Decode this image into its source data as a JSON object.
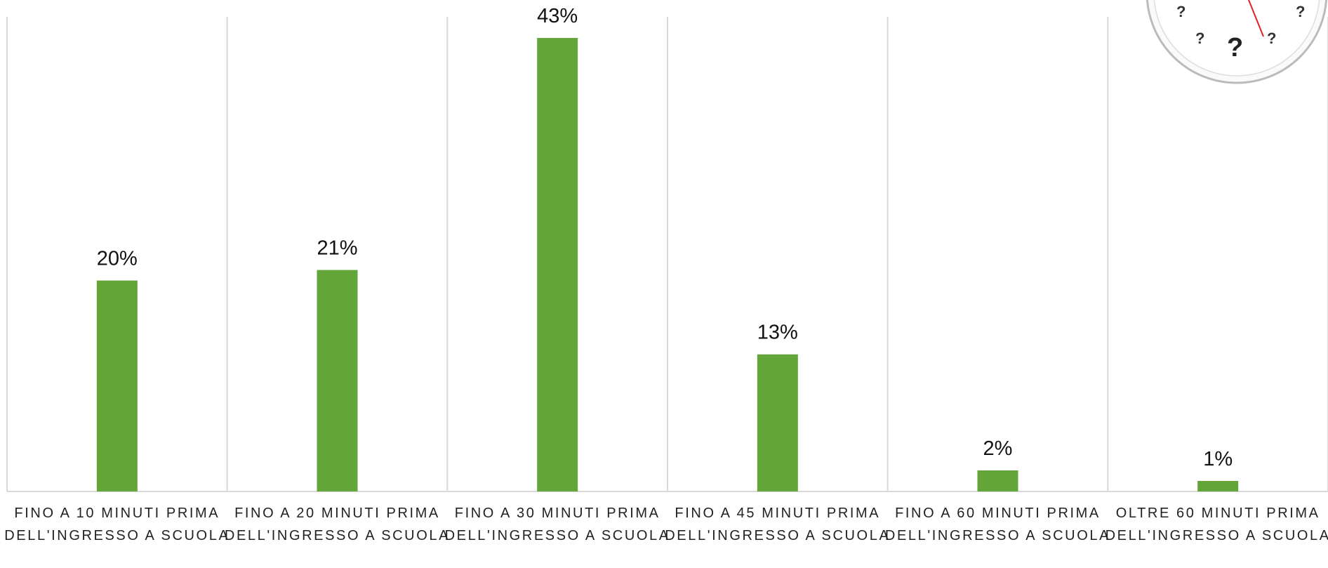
{
  "chart_data": {
    "type": "bar",
    "categories": [
      "FINO A 10 MINUTI PRIMA DELL'INGRESSO A SCUOLA",
      "FINO A 20 MINUTI PRIMA DELL'INGRESSO A SCUOLA",
      "FINO A 30 MINUTI PRIMA DELL'INGRESSO A SCUOLA",
      "FINO A 45 MINUTI PRIMA DELL'INGRESSO A SCUOLA",
      "FINO A 60 MINUTI PRIMA DELL'INGRESSO A SCUOLA",
      "OLTRE 60 MINUTI PRIMA DELL'INGRESSO A SCUOLA"
    ],
    "values": [
      20,
      21,
      43,
      13,
      2,
      1
    ],
    "value_labels": [
      "20%",
      "21%",
      "43%",
      "13%",
      "2%",
      "1%"
    ],
    "color": "#63a538",
    "ylim": [
      0,
      45
    ]
  }
}
